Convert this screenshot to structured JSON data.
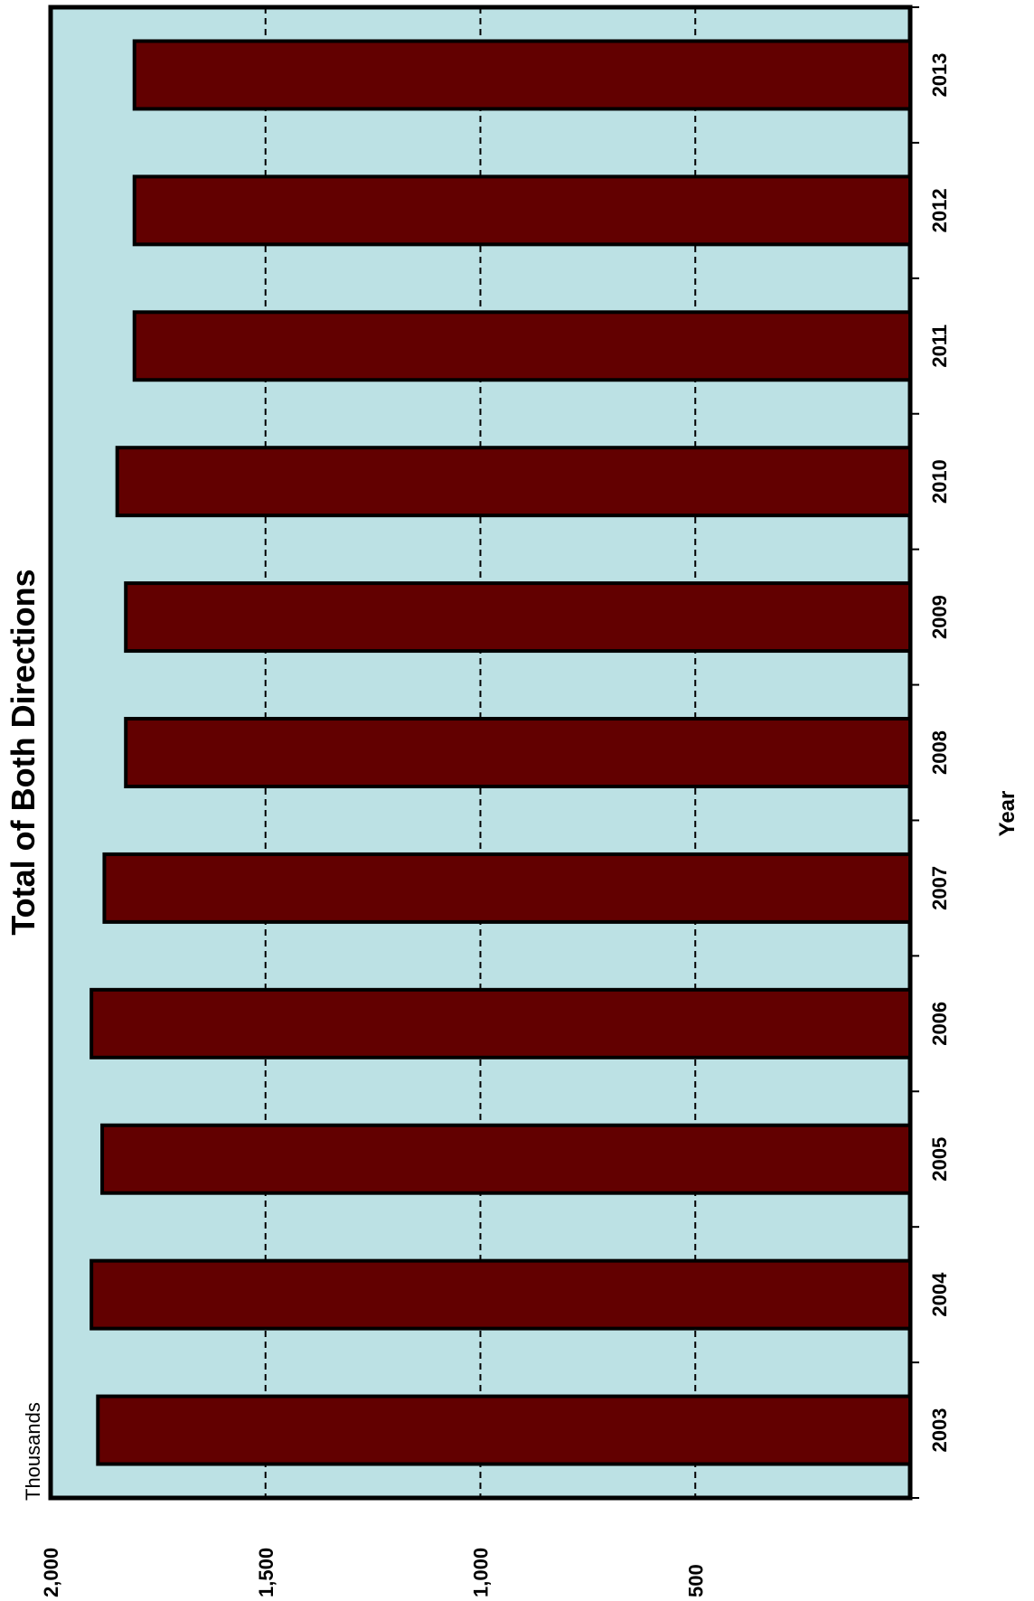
{
  "chart_data": {
    "type": "bar",
    "orientation": "horizontal-rotated",
    "title": "Total of Both Directions",
    "xlabel": "Year",
    "ylabel": "",
    "unit_label": "Thousands",
    "categories": [
      "2003",
      "2004",
      "2005",
      "2006",
      "2007",
      "2008",
      "2009",
      "2010",
      "2011",
      "2012",
      "2013"
    ],
    "values": [
      1890,
      1905,
      1880,
      1905,
      1875,
      1825,
      1825,
      1845,
      1805,
      1805,
      1805
    ],
    "ylim": [
      0,
      2000
    ],
    "ticks": [
      "2,000",
      "1,500",
      "1,000",
      "500"
    ],
    "tick_values": [
      2000,
      1500,
      1000,
      500
    ],
    "grid": true,
    "colors": {
      "bar": "#620000",
      "plot_background": "#bce1e4",
      "outline": "#000000"
    }
  }
}
